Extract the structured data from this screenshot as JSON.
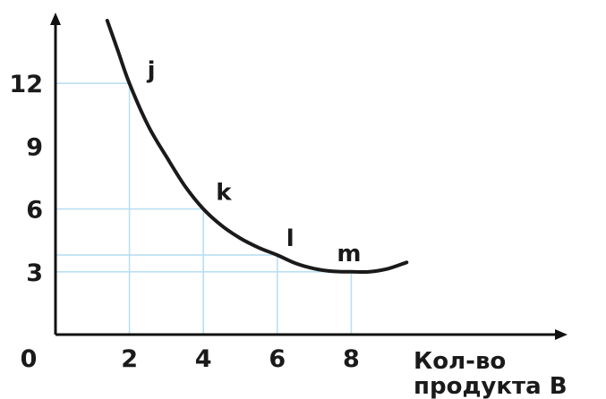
{
  "chart_data": {
    "type": "line",
    "xlabel": "Кол-во продукта В",
    "xlabel_lines": [
      "Кол-во",
      "продукта В"
    ],
    "ylabel": "",
    "x_ticks": [
      "0",
      "2",
      "4",
      "6",
      "8"
    ],
    "y_ticks": [
      "12",
      "9",
      "6",
      "3"
    ],
    "points": [
      {
        "label": "j",
        "x": 2,
        "y": 12
      },
      {
        "label": "k",
        "x": 4,
        "y": 6
      },
      {
        "label": "l",
        "x": 6,
        "y": 3.8
      },
      {
        "label": "m",
        "x": 8,
        "y": 3
      }
    ],
    "series": [
      {
        "x": [
          1.4,
          1.7,
          2,
          2.5,
          3,
          3.5,
          4,
          4.5,
          5,
          5.5,
          6,
          6.5,
          7,
          7.5,
          8,
          8.5,
          9,
          9.5
        ],
        "y": [
          15,
          13.5,
          12,
          10,
          8.5,
          7.1,
          6,
          5.2,
          4.6,
          4.15,
          3.8,
          3.4,
          3.15,
          3.02,
          3,
          3,
          3.15,
          3.45
        ]
      }
    ],
    "xlim": [
      0,
      10.6
    ],
    "ylim": [
      0,
      15.7
    ],
    "grid": false,
    "guide_lines": true
  }
}
